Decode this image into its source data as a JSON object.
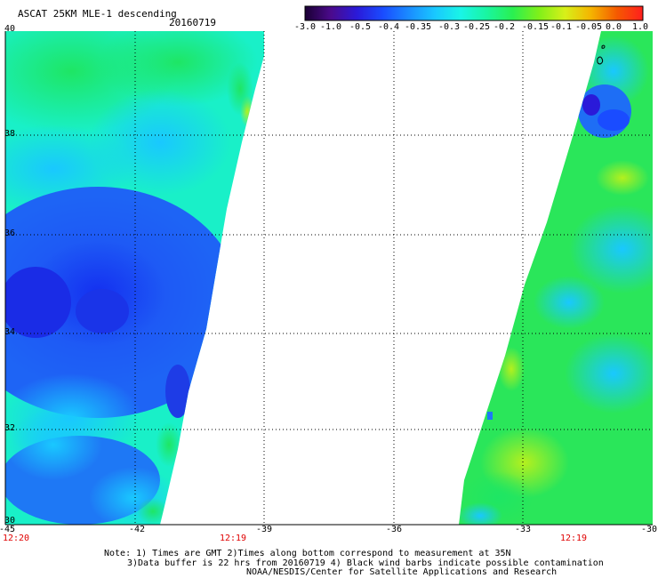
{
  "header": {
    "title": "ASCAT 25KM MLE-1 descending",
    "date": "20160719"
  },
  "colorbar": {
    "ticks": [
      "-3.0",
      "-1.0",
      "-0.5",
      "-0.4",
      "-0.35",
      "-0.3",
      "-0.25",
      "-0.2",
      "-0.15",
      "-0.1",
      "-0.05",
      "0.0",
      "1.0"
    ],
    "colors": [
      "#1a0033",
      "#4b0a8c",
      "#2a1ad9",
      "#1a4cff",
      "#1a8cff",
      "#19c8ff",
      "#19f5e6",
      "#19f5a0",
      "#2af050",
      "#80f019",
      "#d7f019",
      "#f5b400",
      "#f55a00",
      "#ff1e1e"
    ]
  },
  "map": {
    "lat_labels": [
      "40",
      "38",
      "36",
      "34",
      "32",
      "30"
    ],
    "lon_labels": [
      "-45",
      "-42",
      "-39",
      "-36",
      "-33",
      "-30"
    ],
    "time_labels": [
      "12:20",
      "12:19",
      "12:19"
    ],
    "time_color": "#e00000"
  },
  "footer": {
    "note1": "Note: 1) Times are GMT 2)Times along bottom correspond to measurement at 35N",
    "note2": "3)Data buffer is 22 hrs from 20160719 4) Black wind barbs indicate possible contamination",
    "note3": "NOAA/NESDIS/Center for Satellite Applications and Research"
  }
}
